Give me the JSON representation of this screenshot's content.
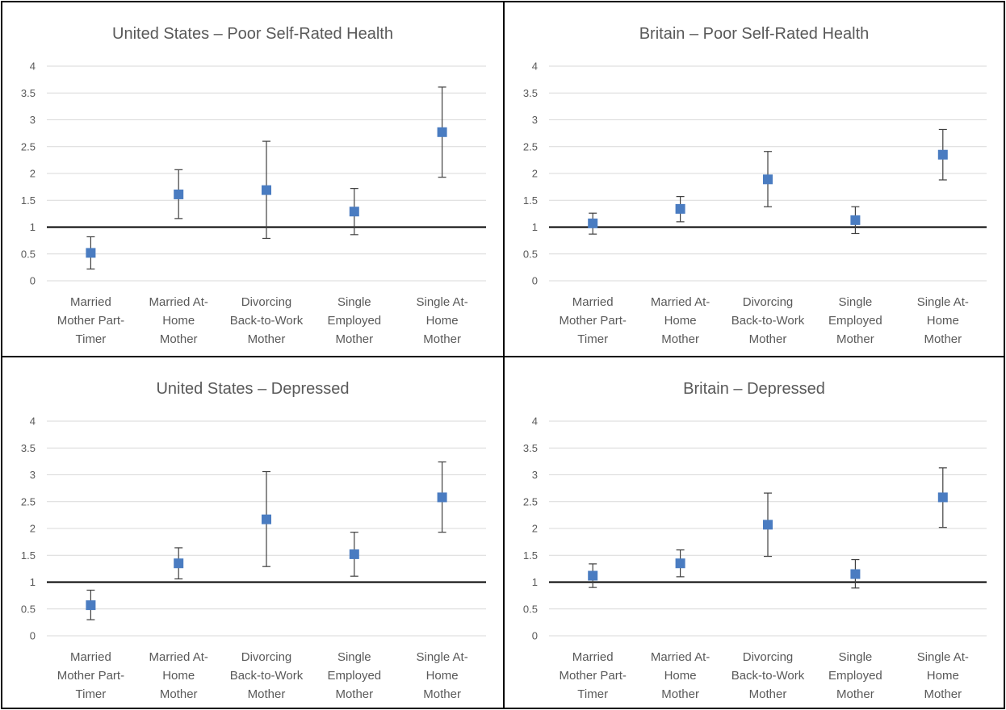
{
  "chart_data": [
    {
      "type": "scatter",
      "title": "United States – Poor Self-Rated Health",
      "categories": [
        [
          "Married",
          "Mother Part-",
          "Timer"
        ],
        [
          "Married At-",
          "Home",
          "Mother"
        ],
        [
          "Divorcing",
          "Back-to-Work",
          "Mother"
        ],
        [
          "Single",
          "Employed",
          "Mother"
        ],
        [
          "Single At-",
          "Home",
          "Mother"
        ]
      ],
      "values": [
        0.52,
        1.61,
        1.69,
        1.29,
        2.77
      ],
      "error_low": [
        0.22,
        1.16,
        0.79,
        0.86,
        1.93
      ],
      "error_high": [
        0.82,
        2.07,
        2.6,
        1.72,
        3.61
      ],
      "ylim": [
        0,
        4
      ],
      "yticks": [
        "0",
        "0.5",
        "1",
        "1.5",
        "2",
        "2.5",
        "3",
        "3.5",
        "4"
      ],
      "reference_line": 1,
      "grid": true,
      "marker_color": "#4a7cc1"
    },
    {
      "type": "scatter",
      "title": "Britain – Poor Self-Rated Health",
      "categories": [
        [
          "Married",
          "Mother Part-",
          "Timer"
        ],
        [
          "Married At-",
          "Home",
          "Mother"
        ],
        [
          "Divorcing",
          "Back-to-Work",
          "Mother"
        ],
        [
          "Single",
          "Employed",
          "Mother"
        ],
        [
          "Single At-",
          "Home",
          "Mother"
        ]
      ],
      "values": [
        1.07,
        1.34,
        1.89,
        1.13,
        2.35
      ],
      "error_low": [
        0.87,
        1.1,
        1.38,
        0.88,
        1.88
      ],
      "error_high": [
        1.26,
        1.57,
        2.41,
        1.38,
        2.82
      ],
      "ylim": [
        0,
        4
      ],
      "yticks": [
        "0",
        "0.5",
        "1",
        "1.5",
        "2",
        "2.5",
        "3",
        "3.5",
        "4"
      ],
      "reference_line": 1,
      "grid": true,
      "marker_color": "#4a7cc1"
    },
    {
      "type": "scatter",
      "title": "United States – Depressed",
      "categories": [
        [
          "Married",
          "Mother Part-",
          "Timer"
        ],
        [
          "Married At-",
          "Home",
          "Mother"
        ],
        [
          "Divorcing",
          "Back-to-Work",
          "Mother"
        ],
        [
          "Single",
          "Employed",
          "Mother"
        ],
        [
          "Single At-",
          "Home",
          "Mother"
        ]
      ],
      "values": [
        0.57,
        1.35,
        2.17,
        1.52,
        2.58
      ],
      "error_low": [
        0.3,
        1.06,
        1.29,
        1.11,
        1.93
      ],
      "error_high": [
        0.85,
        1.64,
        3.06,
        1.93,
        3.24
      ],
      "ylim": [
        0,
        4
      ],
      "yticks": [
        "0",
        "0.5",
        "1",
        "1.5",
        "2",
        "2.5",
        "3",
        "3.5",
        "4"
      ],
      "reference_line": 1,
      "grid": true,
      "marker_color": "#4a7cc1"
    },
    {
      "type": "scatter",
      "title": "Britain – Depressed",
      "categories": [
        [
          "Married",
          "Mother Part-",
          "Timer"
        ],
        [
          "Married At-",
          "Home",
          "Mother"
        ],
        [
          "Divorcing",
          "Back-to-Work",
          "Mother"
        ],
        [
          "Single",
          "Employed",
          "Mother"
        ],
        [
          "Single At-",
          "Home",
          "Mother"
        ]
      ],
      "values": [
        1.12,
        1.35,
        2.07,
        1.15,
        2.58
      ],
      "error_low": [
        0.9,
        1.1,
        1.48,
        0.89,
        2.02
      ],
      "error_high": [
        1.34,
        1.6,
        2.66,
        1.42,
        3.13
      ],
      "ylim": [
        0,
        4
      ],
      "yticks": [
        "0",
        "0.5",
        "1",
        "1.5",
        "2",
        "2.5",
        "3",
        "3.5",
        "4"
      ],
      "reference_line": 1,
      "grid": true,
      "marker_color": "#4a7cc1"
    }
  ]
}
